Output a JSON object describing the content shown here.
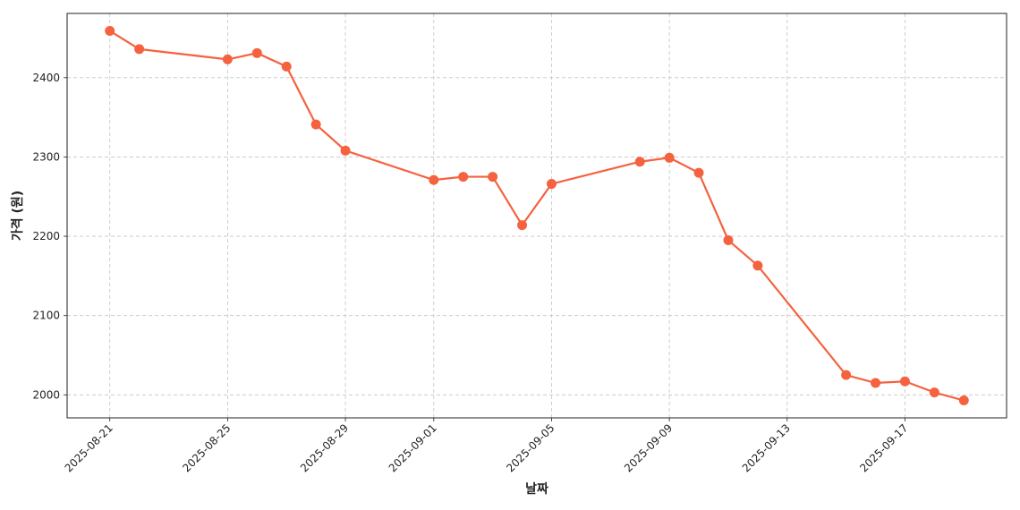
{
  "chart_data": {
    "type": "line",
    "x_label": "날짜",
    "y_label": "가격 (원)",
    "x": [
      "2025-08-21",
      "2025-08-22",
      "2025-08-25",
      "2025-08-26",
      "2025-08-27",
      "2025-08-28",
      "2025-08-29",
      "2025-09-01",
      "2025-09-02",
      "2025-09-03",
      "2025-09-04",
      "2025-09-05",
      "2025-09-08",
      "2025-09-09",
      "2025-09-10",
      "2025-09-11",
      "2025-09-12",
      "2025-09-15",
      "2025-09-16",
      "2025-09-17",
      "2025-09-18",
      "2025-09-19"
    ],
    "series": [
      {
        "color": "#f4623f",
        "values": [
          2459,
          2436,
          2423,
          2431,
          2414,
          2341,
          2308,
          2271,
          2275,
          2275,
          2214,
          2266,
          2294,
          2299,
          2280,
          2195,
          2163,
          2025,
          2015,
          2017,
          2003,
          1993
        ]
      }
    ],
    "ylim": [
      1971,
      2481
    ],
    "yticks": [
      2000,
      2100,
      2200,
      2300,
      2400
    ],
    "xticks": [
      "2025-08-21",
      "2025-08-25",
      "2025-08-29",
      "2025-09-01",
      "2025-09-05",
      "2025-09-09",
      "2025-09-13",
      "2025-09-17"
    ],
    "grid": true
  }
}
